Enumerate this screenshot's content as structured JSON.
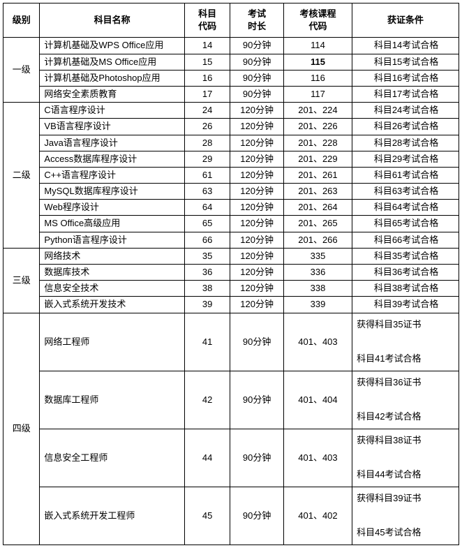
{
  "headers": {
    "level": "级别",
    "name": "科目名称",
    "code": "科目\n代码",
    "duration": "考试\n时长",
    "course": "考核课程\n代码",
    "condition": "获证条件"
  },
  "widths": {
    "level": 48,
    "name": 190,
    "code": 60,
    "duration": 70,
    "course": 90,
    "condition": 140
  },
  "levels": [
    {
      "label": "一级",
      "rows": [
        {
          "name": "计算机基础及WPS Office应用",
          "code": "14",
          "dur": "90分钟",
          "course": "114",
          "cond": "科目14考试合格"
        },
        {
          "name": "计算机基础及MS Office应用",
          "code": "15",
          "dur": "90分钟",
          "course": "115",
          "course_bold": true,
          "cond": "科目15考试合格"
        },
        {
          "name": "计算机基础及Photoshop应用",
          "code": "16",
          "dur": "90分钟",
          "course": "116",
          "cond": "科目16考试合格"
        },
        {
          "name": "网络安全素质教育",
          "code": "17",
          "dur": "90分钟",
          "course": "117",
          "cond": "科目17考试合格"
        }
      ]
    },
    {
      "label": "二级",
      "rows": [
        {
          "name": "C语言程序设计",
          "code": "24",
          "dur": "120分钟",
          "course": "201、224",
          "cond": "科目24考试合格"
        },
        {
          "name": "VB语言程序设计",
          "code": "26",
          "dur": "120分钟",
          "course": "201、226",
          "cond": "科目26考试合格"
        },
        {
          "name": "Java语言程序设计",
          "code": "28",
          "dur": "120分钟",
          "course": "201、228",
          "cond": "科目28考试合格"
        },
        {
          "name": "Access数据库程序设计",
          "code": "29",
          "dur": "120分钟",
          "course": "201、229",
          "cond": "科目29考试合格"
        },
        {
          "name": "C++语言程序设计",
          "code": "61",
          "dur": "120分钟",
          "course": "201、261",
          "cond": "科目61考试合格"
        },
        {
          "name": "MySQL数据库程序设计",
          "code": "63",
          "dur": "120分钟",
          "course": "201、263",
          "cond": "科目63考试合格"
        },
        {
          "name": "Web程序设计",
          "code": "64",
          "dur": "120分钟",
          "course": "201、264",
          "cond": "科目64考试合格"
        },
        {
          "name": "MS Office高级应用",
          "code": "65",
          "dur": "120分钟",
          "course": "201、265",
          "cond": "科目65考试合格"
        },
        {
          "name": "Python语言程序设计",
          "code": "66",
          "dur": "120分钟",
          "course": "201、266",
          "cond": "科目66考试合格"
        }
      ]
    },
    {
      "label": "三级",
      "rows": [
        {
          "name": "网络技术",
          "code": "35",
          "dur": "120分钟",
          "course": "335",
          "cond": "科目35考试合格"
        },
        {
          "name": "数据库技术",
          "code": "36",
          "dur": "120分钟",
          "course": "336",
          "cond": "科目36考试合格"
        },
        {
          "name": "信息安全技术",
          "code": "38",
          "dur": "120分钟",
          "course": "338",
          "cond": "科目38考试合格"
        },
        {
          "name": "嵌入式系统开发技术",
          "code": "39",
          "dur": "120分钟",
          "course": "339",
          "cond": "科目39考试合格"
        }
      ]
    },
    {
      "label": "四级",
      "rows": [
        {
          "name": "网络工程师",
          "code": "41",
          "dur": "90分钟",
          "course": "401、403",
          "cond_multi": [
            "获得科目35证书",
            "",
            "科目41考试合格"
          ]
        },
        {
          "name": "数据库工程师",
          "code": "42",
          "dur": "90分钟",
          "course": "401、404",
          "cond_multi": [
            "获得科目36证书",
            "",
            "科目42考试合格"
          ]
        },
        {
          "name": "信息安全工程师",
          "code": "44",
          "dur": "90分钟",
          "course": "401、403",
          "cond_multi": [
            "获得科目38证书",
            "",
            "科目44考试合格"
          ]
        },
        {
          "name": "嵌入式系统开发工程师",
          "code": "45",
          "dur": "90分钟",
          "course": "401、402",
          "cond_multi": [
            "获得科目39证书",
            "",
            "科目45考试合格"
          ]
        }
      ]
    }
  ]
}
